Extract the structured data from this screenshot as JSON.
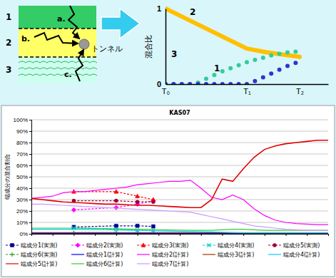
{
  "diagram": {
    "layers": [
      {
        "label": "1"
      },
      {
        "label": "2"
      },
      {
        "label": "3"
      }
    ],
    "paths": [
      {
        "label": "a."
      },
      {
        "label": "b."
      },
      {
        "label": "c."
      }
    ],
    "tunnel": "トンネル"
  },
  "chart_data": [
    {
      "type": "line",
      "ylabel": "混合比",
      "xlim": [
        0,
        2
      ],
      "ylim": [
        0,
        1
      ],
      "xticks": [
        {
          "value": 0,
          "label": "T₀"
        },
        {
          "value": 1,
          "label": "T₁"
        },
        {
          "value": 1.65,
          "label": "T₂"
        }
      ],
      "yticks": [
        0,
        1
      ],
      "grid": false,
      "series": [
        {
          "name": "2",
          "type": "line",
          "color": "#ffc000",
          "x": [
            0,
            1,
            1.25,
            1.65
          ],
          "values": [
            1,
            0.47,
            0.42,
            0.36
          ]
        },
        {
          "name": "3",
          "type": "scatter",
          "marker": "circle",
          "color": "#33cc99",
          "x": [
            0,
            0.1,
            0.2,
            0.3,
            0.4,
            0.5,
            0.6,
            0.7,
            0.8,
            0.9,
            1,
            1.1,
            1.2,
            1.3,
            1.4,
            1.5,
            1.6
          ],
          "values": [
            0,
            0,
            0,
            0,
            0.02,
            0.07,
            0.12,
            0.17,
            0.21,
            0.25,
            0.29,
            0.32,
            0.35,
            0.38,
            0.4,
            0.42,
            0.43
          ]
        },
        {
          "name": "1",
          "type": "scatter",
          "marker": "circle",
          "color": "#3333cc",
          "x": [
            0,
            0.1,
            0.2,
            0.3,
            0.4,
            0.5,
            0.6,
            0.7,
            0.8,
            0.9,
            1,
            1.1,
            1.2,
            1.3,
            1.4,
            1.5,
            1.6
          ],
          "values": [
            0,
            0,
            0,
            0,
            0,
            0,
            0,
            0,
            0,
            0,
            0,
            0.04,
            0.09,
            0.14,
            0.19,
            0.24,
            0.28
          ]
        }
      ]
    },
    {
      "type": "line",
      "title": "KAS07",
      "ylabel": "端成分の混合割合",
      "x": [
        0,
        1,
        2,
        3,
        4,
        5,
        6,
        7,
        8,
        9,
        10,
        11,
        12,
        13,
        14,
        15,
        16,
        17,
        18,
        19,
        20,
        21,
        22,
        23,
        24,
        25,
        26,
        27,
        28
      ],
      "xlim": [
        0,
        28
      ],
      "xticks": [
        0,
        2,
        4,
        6,
        8,
        10,
        12,
        14,
        16,
        18,
        20,
        22,
        24,
        26,
        28
      ],
      "ylim": [
        0,
        100
      ],
      "yticks": [
        {
          "value": 0,
          "label": "0%"
        },
        {
          "value": 10,
          "label": "10%"
        },
        {
          "value": 20,
          "label": "20%"
        },
        {
          "value": 30,
          "label": "30%"
        },
        {
          "value": 40,
          "label": "40%"
        },
        {
          "value": 50,
          "label": "50%"
        },
        {
          "value": 60,
          "label": "60%"
        },
        {
          "value": 70,
          "label": "70%"
        },
        {
          "value": 80,
          "label": "80%"
        },
        {
          "value": 90,
          "label": "90%"
        },
        {
          "value": 100,
          "label": "100%"
        }
      ],
      "grid": true,
      "legend": "bottom",
      "tick_labels": "y",
      "series": [
        {
          "name": "端成分1(実測)",
          "color": "#000099",
          "line_style": "dashed",
          "marker": "square",
          "x": [
            4,
            8,
            10,
            11.5
          ],
          "values": [
            6,
            7,
            7,
            6.5
          ]
        },
        {
          "name": "端成分2(実測)",
          "color": "#ff00ff",
          "line_style": "dashed",
          "marker": "diamond",
          "x": [
            4,
            8,
            10,
            11.5
          ],
          "values": [
            21,
            23,
            26,
            29
          ]
        },
        {
          "name": "端成分3(実測)",
          "color": "#ff0000",
          "line_style": "dashed",
          "marker": "triangle",
          "x": [
            4,
            8,
            10,
            11.5
          ],
          "values": [
            37,
            37,
            33,
            30
          ]
        },
        {
          "name": "端成分4(実測)",
          "color": "#00cccc",
          "line_style": "dashed",
          "marker": "x",
          "x": [
            4,
            8,
            10,
            11.5
          ],
          "values": [
            5,
            4,
            3,
            3
          ]
        },
        {
          "name": "端成分5(実測)",
          "color": "#990033",
          "line_style": "dashed",
          "marker": "circle",
          "x": [
            4,
            8,
            10,
            11.5
          ],
          "values": [
            29,
            29,
            28,
            28
          ]
        },
        {
          "name": "端成分6(実測)",
          "color": "#339933",
          "line_style": "dashed",
          "marker": "plus",
          "x": [
            4,
            8,
            10,
            11.5
          ],
          "values": [
            1,
            1,
            0.5,
            0.5
          ]
        },
        {
          "name": "端成分1(計算)",
          "color": "#0000ff",
          "line_style": "solid",
          "values": [
            0.3,
            0.3,
            0.3,
            0.3,
            0.3,
            0.3,
            0.3,
            0.3,
            0.3,
            0.3,
            0.3,
            0.3,
            0.3,
            0.3,
            0.3,
            0.3,
            0.3,
            0.3,
            0.3,
            0.3,
            0.3,
            0.3,
            0.3,
            0.3,
            0.3,
            0.3,
            0.3,
            0.3,
            0.3
          ]
        },
        {
          "name": "端成分2(計算)",
          "color": "#ff00ff",
          "line_style": "solid",
          "values": [
            31,
            32,
            33,
            36,
            37,
            37,
            38,
            39,
            40,
            41,
            43,
            44,
            45,
            46,
            46,
            47,
            40,
            32,
            30,
            34,
            30,
            22,
            16,
            12,
            10,
            9,
            8.5,
            8,
            8
          ]
        },
        {
          "name": "端成分3(計算)",
          "color": "#993300",
          "line_style": "solid",
          "values": [
            1,
            1,
            1,
            1,
            1,
            1,
            1,
            1,
            1,
            1,
            1,
            1,
            1,
            1,
            1,
            1,
            1,
            1,
            0.8,
            0.7,
            0.6,
            0.5,
            0.5,
            0.5,
            0.5,
            0.5,
            0.5,
            0.5,
            0.5
          ]
        },
        {
          "name": "端成分4(計算)",
          "color": "#00ccff",
          "line_style": "solid",
          "values": [
            4,
            4,
            4,
            4,
            4,
            4,
            3.8,
            3.6,
            3.4,
            3.2,
            3,
            2.8,
            2.6,
            2.4,
            2.2,
            2,
            1.8,
            1.6,
            1.4,
            1.2,
            1,
            1,
            1,
            1,
            1,
            1,
            1,
            1,
            1
          ]
        },
        {
          "name": "端成分5(計算)",
          "color": "#e00000",
          "line_style": "solid",
          "values": [
            31,
            30,
            29,
            28,
            27.5,
            27,
            26.5,
            26,
            26,
            25.5,
            25,
            25,
            24.5,
            24,
            23.5,
            23,
            23,
            30,
            48,
            46,
            57,
            67,
            74,
            77,
            79,
            80,
            81,
            82,
            82
          ]
        },
        {
          "name": "端成分6(計算)",
          "color": "#33cc33",
          "line_style": "solid",
          "values": [
            5,
            5,
            5,
            5,
            5,
            5,
            4.8,
            4.6,
            4.4,
            4.2,
            4,
            3.8,
            3.6,
            3.4,
            3.2,
            3,
            3,
            3,
            3.5,
            4,
            4,
            3.5,
            3,
            3,
            3,
            3,
            3,
            3,
            3
          ]
        },
        {
          "name": "端成分7(計算)",
          "color": "#cc99ff",
          "line_style": "solid",
          "values": [
            26,
            26,
            25.5,
            25,
            24.5,
            24,
            23.5,
            23,
            22.5,
            22,
            21.5,
            21,
            20.5,
            20,
            19.5,
            19,
            17,
            15,
            13,
            11,
            9,
            7,
            6,
            5,
            4,
            3.5,
            3,
            3,
            3
          ]
        }
      ]
    }
  ]
}
